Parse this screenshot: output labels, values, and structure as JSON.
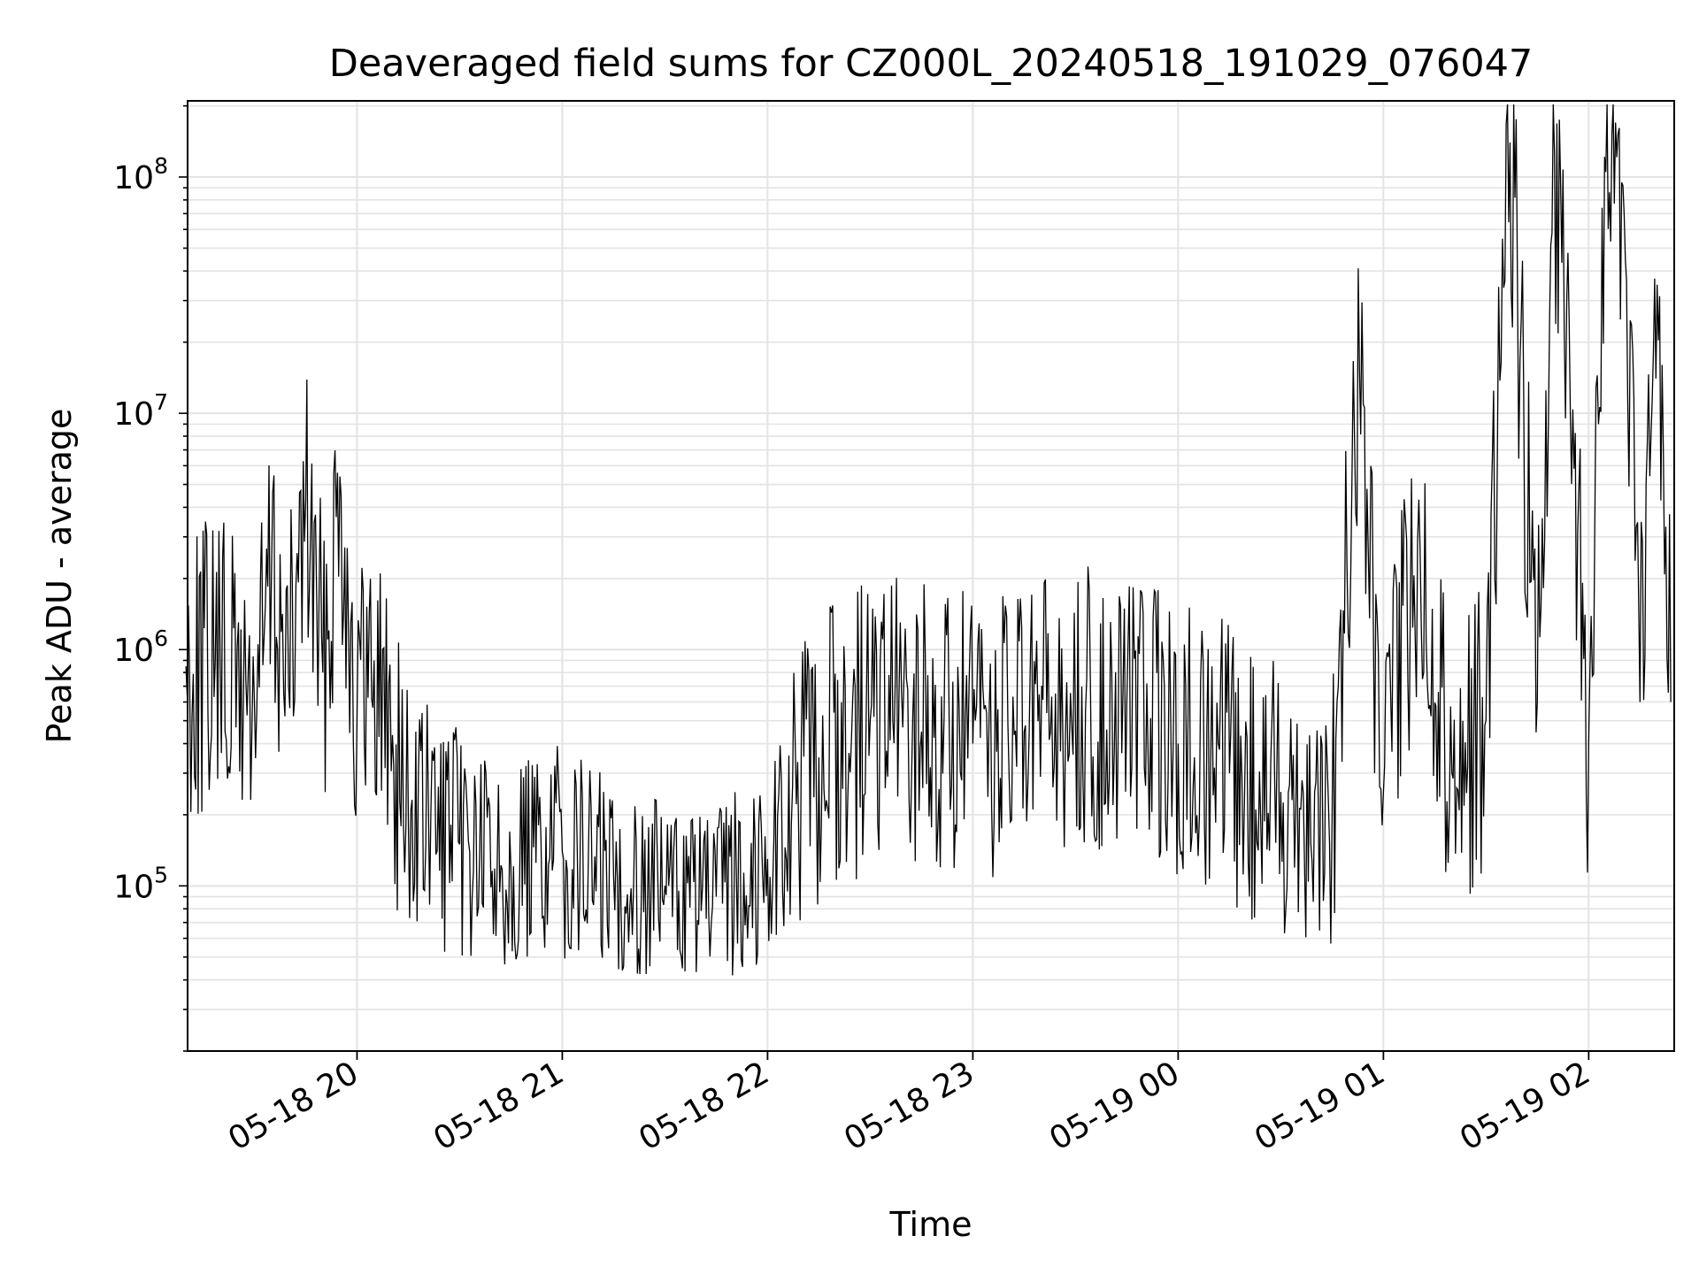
{
  "chart_data": {
    "type": "line",
    "title": "Deaveraged field sums for CZ000L_20240518_191029_076047",
    "xlabel": "Time",
    "ylabel": "Peak ADU - average",
    "yscale": "log",
    "ylim": [
      20000,
      210000000
    ],
    "xlim": [
      "2024-05-18 19:10:29",
      "2024-05-19 02:25:00"
    ],
    "grid": true,
    "line_color": "#000000",
    "x_ticks": [
      {
        "value": "2024-05-18 20:00",
        "label": "05-18 20"
      },
      {
        "value": "2024-05-18 21:00",
        "label": "05-18 21"
      },
      {
        "value": "2024-05-18 22:00",
        "label": "05-18 22"
      },
      {
        "value": "2024-05-18 23:00",
        "label": "05-18 23"
      },
      {
        "value": "2024-05-19 00:00",
        "label": "05-19 00"
      },
      {
        "value": "2024-05-19 01:00",
        "label": "05-19 01"
      },
      {
        "value": "2024-05-19 02:00",
        "label": "05-19 02"
      }
    ],
    "y_ticks": [
      {
        "value": 100000,
        "base": "10",
        "exp": "5"
      },
      {
        "value": 1000000,
        "base": "10",
        "exp": "6"
      },
      {
        "value": 10000000,
        "base": "10",
        "exp": "7"
      },
      {
        "value": 100000000,
        "base": "10",
        "exp": "8"
      }
    ],
    "series": [
      {
        "x": [
          "2024-05-18 19:10",
          "2024-05-18 19:20",
          "2024-05-18 19:30",
          "2024-05-18 19:35",
          "2024-05-18 19:40",
          "2024-05-18 19:45",
          "2024-05-18 19:50",
          "2024-05-18 19:55",
          "2024-05-18 20:00",
          "2024-05-18 20:05",
          "2024-05-18 20:15",
          "2024-05-18 20:30",
          "2024-05-18 20:45",
          "2024-05-18 21:00",
          "2024-05-18 21:15",
          "2024-05-18 21:30",
          "2024-05-18 21:45",
          "2024-05-18 22:00",
          "2024-05-18 22:15",
          "2024-05-18 22:30",
          "2024-05-18 22:45",
          "2024-05-18 23:00",
          "2024-05-18 23:15",
          "2024-05-18 23:30",
          "2024-05-18 23:45",
          "2024-05-19 00:00",
          "2024-05-19 00:15",
          "2024-05-19 00:30",
          "2024-05-19 00:45",
          "2024-05-19 00:53",
          "2024-05-19 01:00",
          "2024-05-19 01:10",
          "2024-05-19 01:20",
          "2024-05-19 01:30",
          "2024-05-19 01:37",
          "2024-05-19 01:45",
          "2024-05-19 01:50",
          "2024-05-19 02:00",
          "2024-05-19 02:05",
          "2024-05-19 02:10",
          "2024-05-19 02:15",
          "2024-05-19 02:20",
          "2024-05-19 02:24"
        ],
        "y": [
          850000,
          900000,
          600000,
          2100000,
          700000,
          4300000,
          800000,
          5400000,
          500000,
          900000,
          200000,
          150000,
          120000,
          140000,
          110000,
          100000,
          90000,
          130000,
          350000,
          500000,
          450000,
          400000,
          450000,
          500000,
          600000,
          400000,
          300000,
          250000,
          200000,
          15500000,
          250000,
          2900000,
          300000,
          500000,
          140000000,
          600000,
          126000000,
          400000,
          105000000,
          92000000,
          600000,
          35000000,
          600000
        ]
      }
    ]
  }
}
